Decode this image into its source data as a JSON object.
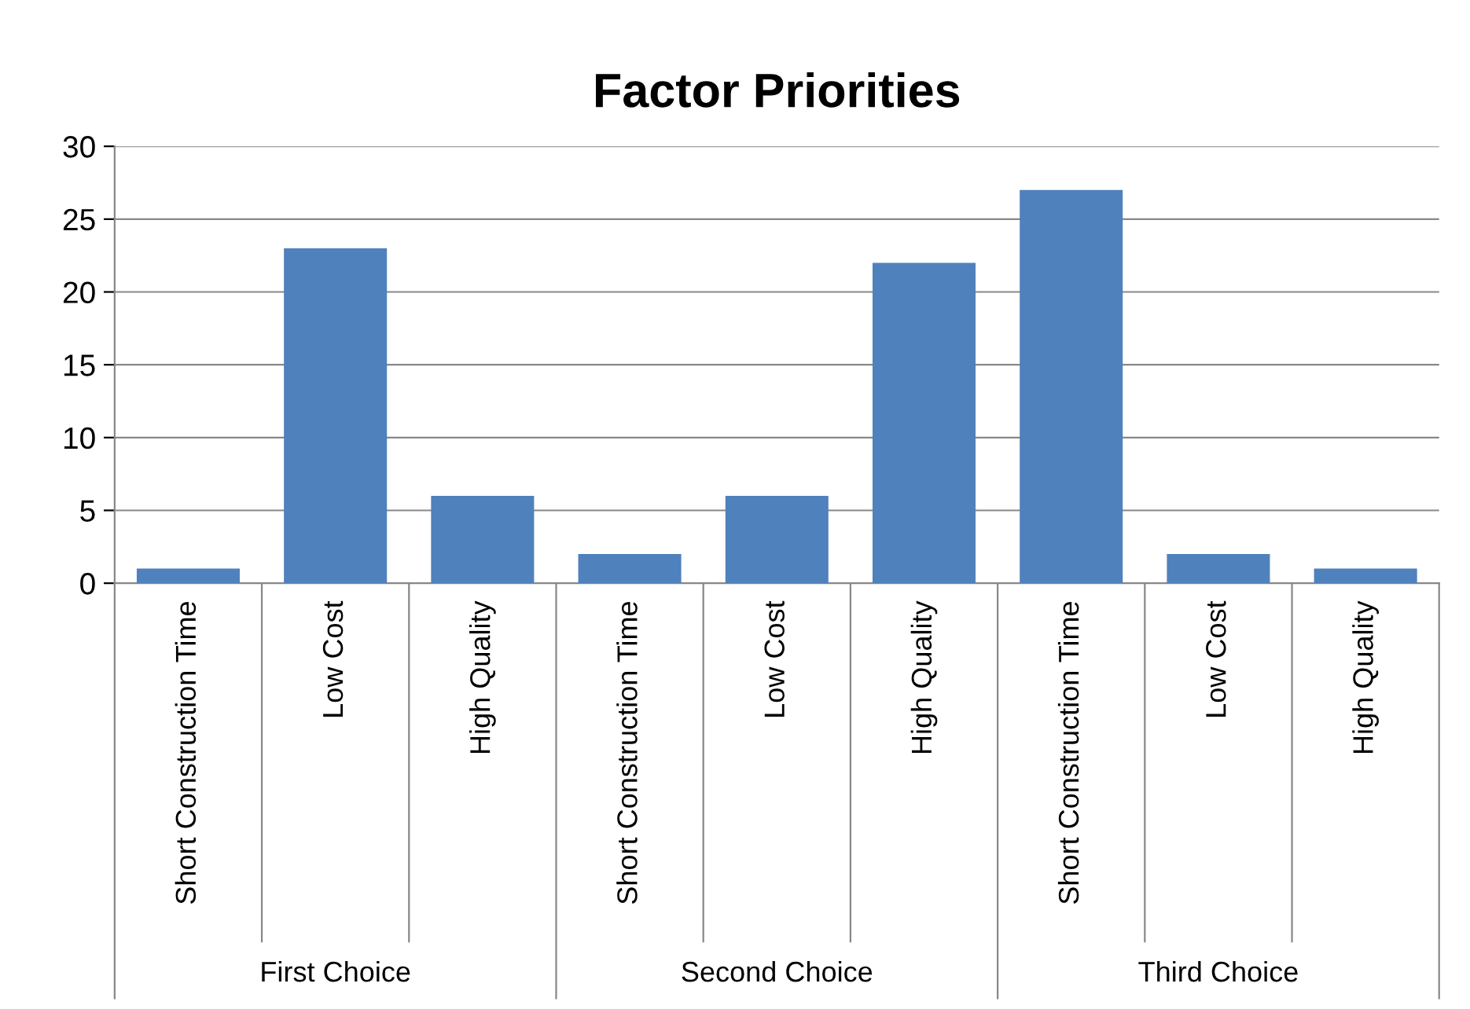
{
  "chart_data": {
    "type": "bar",
    "title": "Factor Priorities",
    "categories": [
      "Short Construction Time",
      "Low Cost",
      "High Quality",
      "Short Construction Time",
      "Low Cost",
      "High Quality",
      "Short Construction Time",
      "Low Cost",
      "High Quality"
    ],
    "values": [
      1,
      23,
      6,
      2,
      6,
      22,
      27,
      2,
      1
    ],
    "color": "#4f81bd",
    "annotations": [
      "First Choice",
      "Second Choice",
      "Third Choice"
    ],
    "ylim": [
      0,
      30
    ],
    "yticks": [
      0,
      5,
      10,
      15,
      20,
      25,
      30
    ],
    "grid": "y",
    "legend": false
  }
}
